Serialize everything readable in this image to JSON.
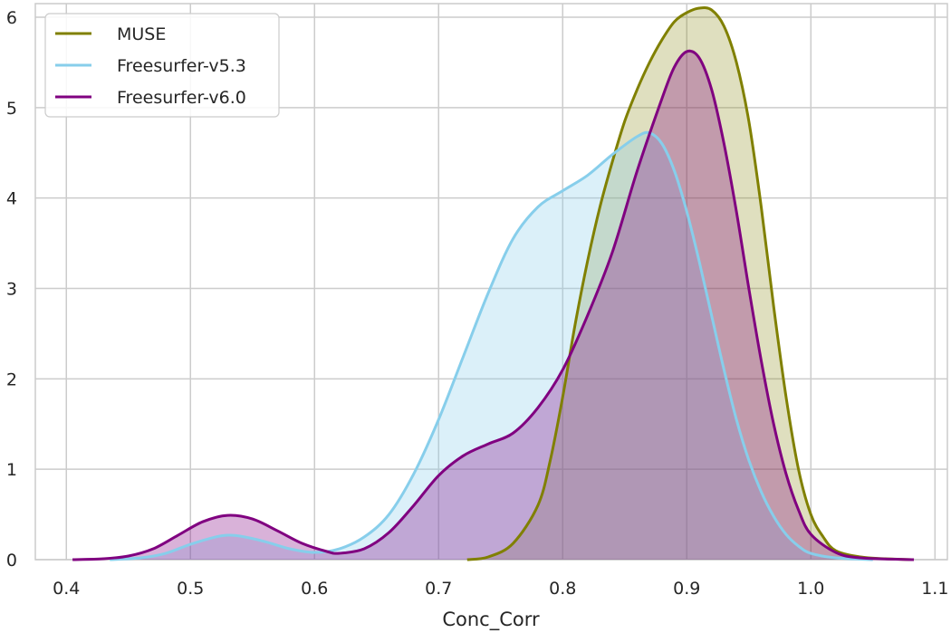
{
  "chart_data": {
    "type": "area",
    "xlabel": "Conc_Corr",
    "ylabel": "",
    "xlim": [
      0.375,
      1.11
    ],
    "ylim": [
      0,
      6.15
    ],
    "xticks": [
      "0.4",
      "0.5",
      "0.6",
      "0.7",
      "0.8",
      "0.9",
      "1.0",
      "1.1"
    ],
    "yticks": [
      "0",
      "1",
      "2",
      "3",
      "4",
      "5",
      "6"
    ],
    "grid": true,
    "legend_position": "top-left",
    "series": [
      {
        "name": "MUSE",
        "color": "#808000",
        "fill_opacity": 0.25,
        "points": [
          [
            0.723,
            0.0
          ],
          [
            0.74,
            0.03
          ],
          [
            0.76,
            0.18
          ],
          [
            0.78,
            0.6
          ],
          [
            0.79,
            1.1
          ],
          [
            0.8,
            1.8
          ],
          [
            0.81,
            2.6
          ],
          [
            0.82,
            3.3
          ],
          [
            0.83,
            3.9
          ],
          [
            0.84,
            4.4
          ],
          [
            0.85,
            4.85
          ],
          [
            0.86,
            5.2
          ],
          [
            0.87,
            5.5
          ],
          [
            0.88,
            5.75
          ],
          [
            0.89,
            5.95
          ],
          [
            0.9,
            6.05
          ],
          [
            0.91,
            6.1
          ],
          [
            0.92,
            6.08
          ],
          [
            0.93,
            5.9
          ],
          [
            0.94,
            5.5
          ],
          [
            0.95,
            4.85
          ],
          [
            0.96,
            3.9
          ],
          [
            0.97,
            2.8
          ],
          [
            0.98,
            1.8
          ],
          [
            0.99,
            1.0
          ],
          [
            1.0,
            0.5
          ],
          [
            1.01,
            0.25
          ],
          [
            1.02,
            0.1
          ],
          [
            1.04,
            0.03
          ],
          [
            1.06,
            0.01
          ],
          [
            1.083,
            0.0
          ]
        ]
      },
      {
        "name": "Freesurfer-v5.3",
        "color": "#87ceeb",
        "fill_opacity": 0.3,
        "points": [
          [
            0.435,
            0.0
          ],
          [
            0.46,
            0.02
          ],
          [
            0.48,
            0.07
          ],
          [
            0.5,
            0.17
          ],
          [
            0.52,
            0.25
          ],
          [
            0.53,
            0.27
          ],
          [
            0.54,
            0.26
          ],
          [
            0.56,
            0.2
          ],
          [
            0.58,
            0.12
          ],
          [
            0.6,
            0.08
          ],
          [
            0.62,
            0.12
          ],
          [
            0.64,
            0.25
          ],
          [
            0.66,
            0.5
          ],
          [
            0.68,
            0.95
          ],
          [
            0.7,
            1.55
          ],
          [
            0.72,
            2.25
          ],
          [
            0.74,
            2.95
          ],
          [
            0.76,
            3.55
          ],
          [
            0.78,
            3.9
          ],
          [
            0.8,
            4.08
          ],
          [
            0.82,
            4.25
          ],
          [
            0.84,
            4.48
          ],
          [
            0.86,
            4.68
          ],
          [
            0.87,
            4.72
          ],
          [
            0.88,
            4.6
          ],
          [
            0.89,
            4.3
          ],
          [
            0.9,
            3.85
          ],
          [
            0.91,
            3.3
          ],
          [
            0.92,
            2.7
          ],
          [
            0.93,
            2.1
          ],
          [
            0.94,
            1.55
          ],
          [
            0.95,
            1.1
          ],
          [
            0.96,
            0.75
          ],
          [
            0.97,
            0.48
          ],
          [
            0.98,
            0.28
          ],
          [
            0.99,
            0.15
          ],
          [
            1.0,
            0.07
          ],
          [
            1.02,
            0.02
          ],
          [
            1.05,
            0.0
          ]
        ]
      },
      {
        "name": "Freesurfer-v6.0",
        "color": "#800080",
        "fill_opacity": 0.3,
        "points": [
          [
            0.405,
            0.0
          ],
          [
            0.43,
            0.01
          ],
          [
            0.45,
            0.04
          ],
          [
            0.47,
            0.12
          ],
          [
            0.49,
            0.27
          ],
          [
            0.51,
            0.42
          ],
          [
            0.53,
            0.49
          ],
          [
            0.55,
            0.45
          ],
          [
            0.57,
            0.32
          ],
          [
            0.59,
            0.18
          ],
          [
            0.61,
            0.09
          ],
          [
            0.62,
            0.07
          ],
          [
            0.64,
            0.12
          ],
          [
            0.66,
            0.3
          ],
          [
            0.68,
            0.6
          ],
          [
            0.7,
            0.93
          ],
          [
            0.72,
            1.15
          ],
          [
            0.74,
            1.28
          ],
          [
            0.76,
            1.4
          ],
          [
            0.78,
            1.68
          ],
          [
            0.8,
            2.1
          ],
          [
            0.82,
            2.7
          ],
          [
            0.84,
            3.4
          ],
          [
            0.86,
            4.3
          ],
          [
            0.88,
            5.1
          ],
          [
            0.89,
            5.45
          ],
          [
            0.9,
            5.62
          ],
          [
            0.91,
            5.55
          ],
          [
            0.92,
            5.2
          ],
          [
            0.93,
            4.6
          ],
          [
            0.94,
            3.85
          ],
          [
            0.95,
            3.0
          ],
          [
            0.96,
            2.2
          ],
          [
            0.97,
            1.5
          ],
          [
            0.98,
            0.95
          ],
          [
            0.99,
            0.55
          ],
          [
            1.0,
            0.28
          ],
          [
            1.02,
            0.08
          ],
          [
            1.04,
            0.02
          ],
          [
            1.083,
            0.0
          ]
        ]
      }
    ]
  }
}
